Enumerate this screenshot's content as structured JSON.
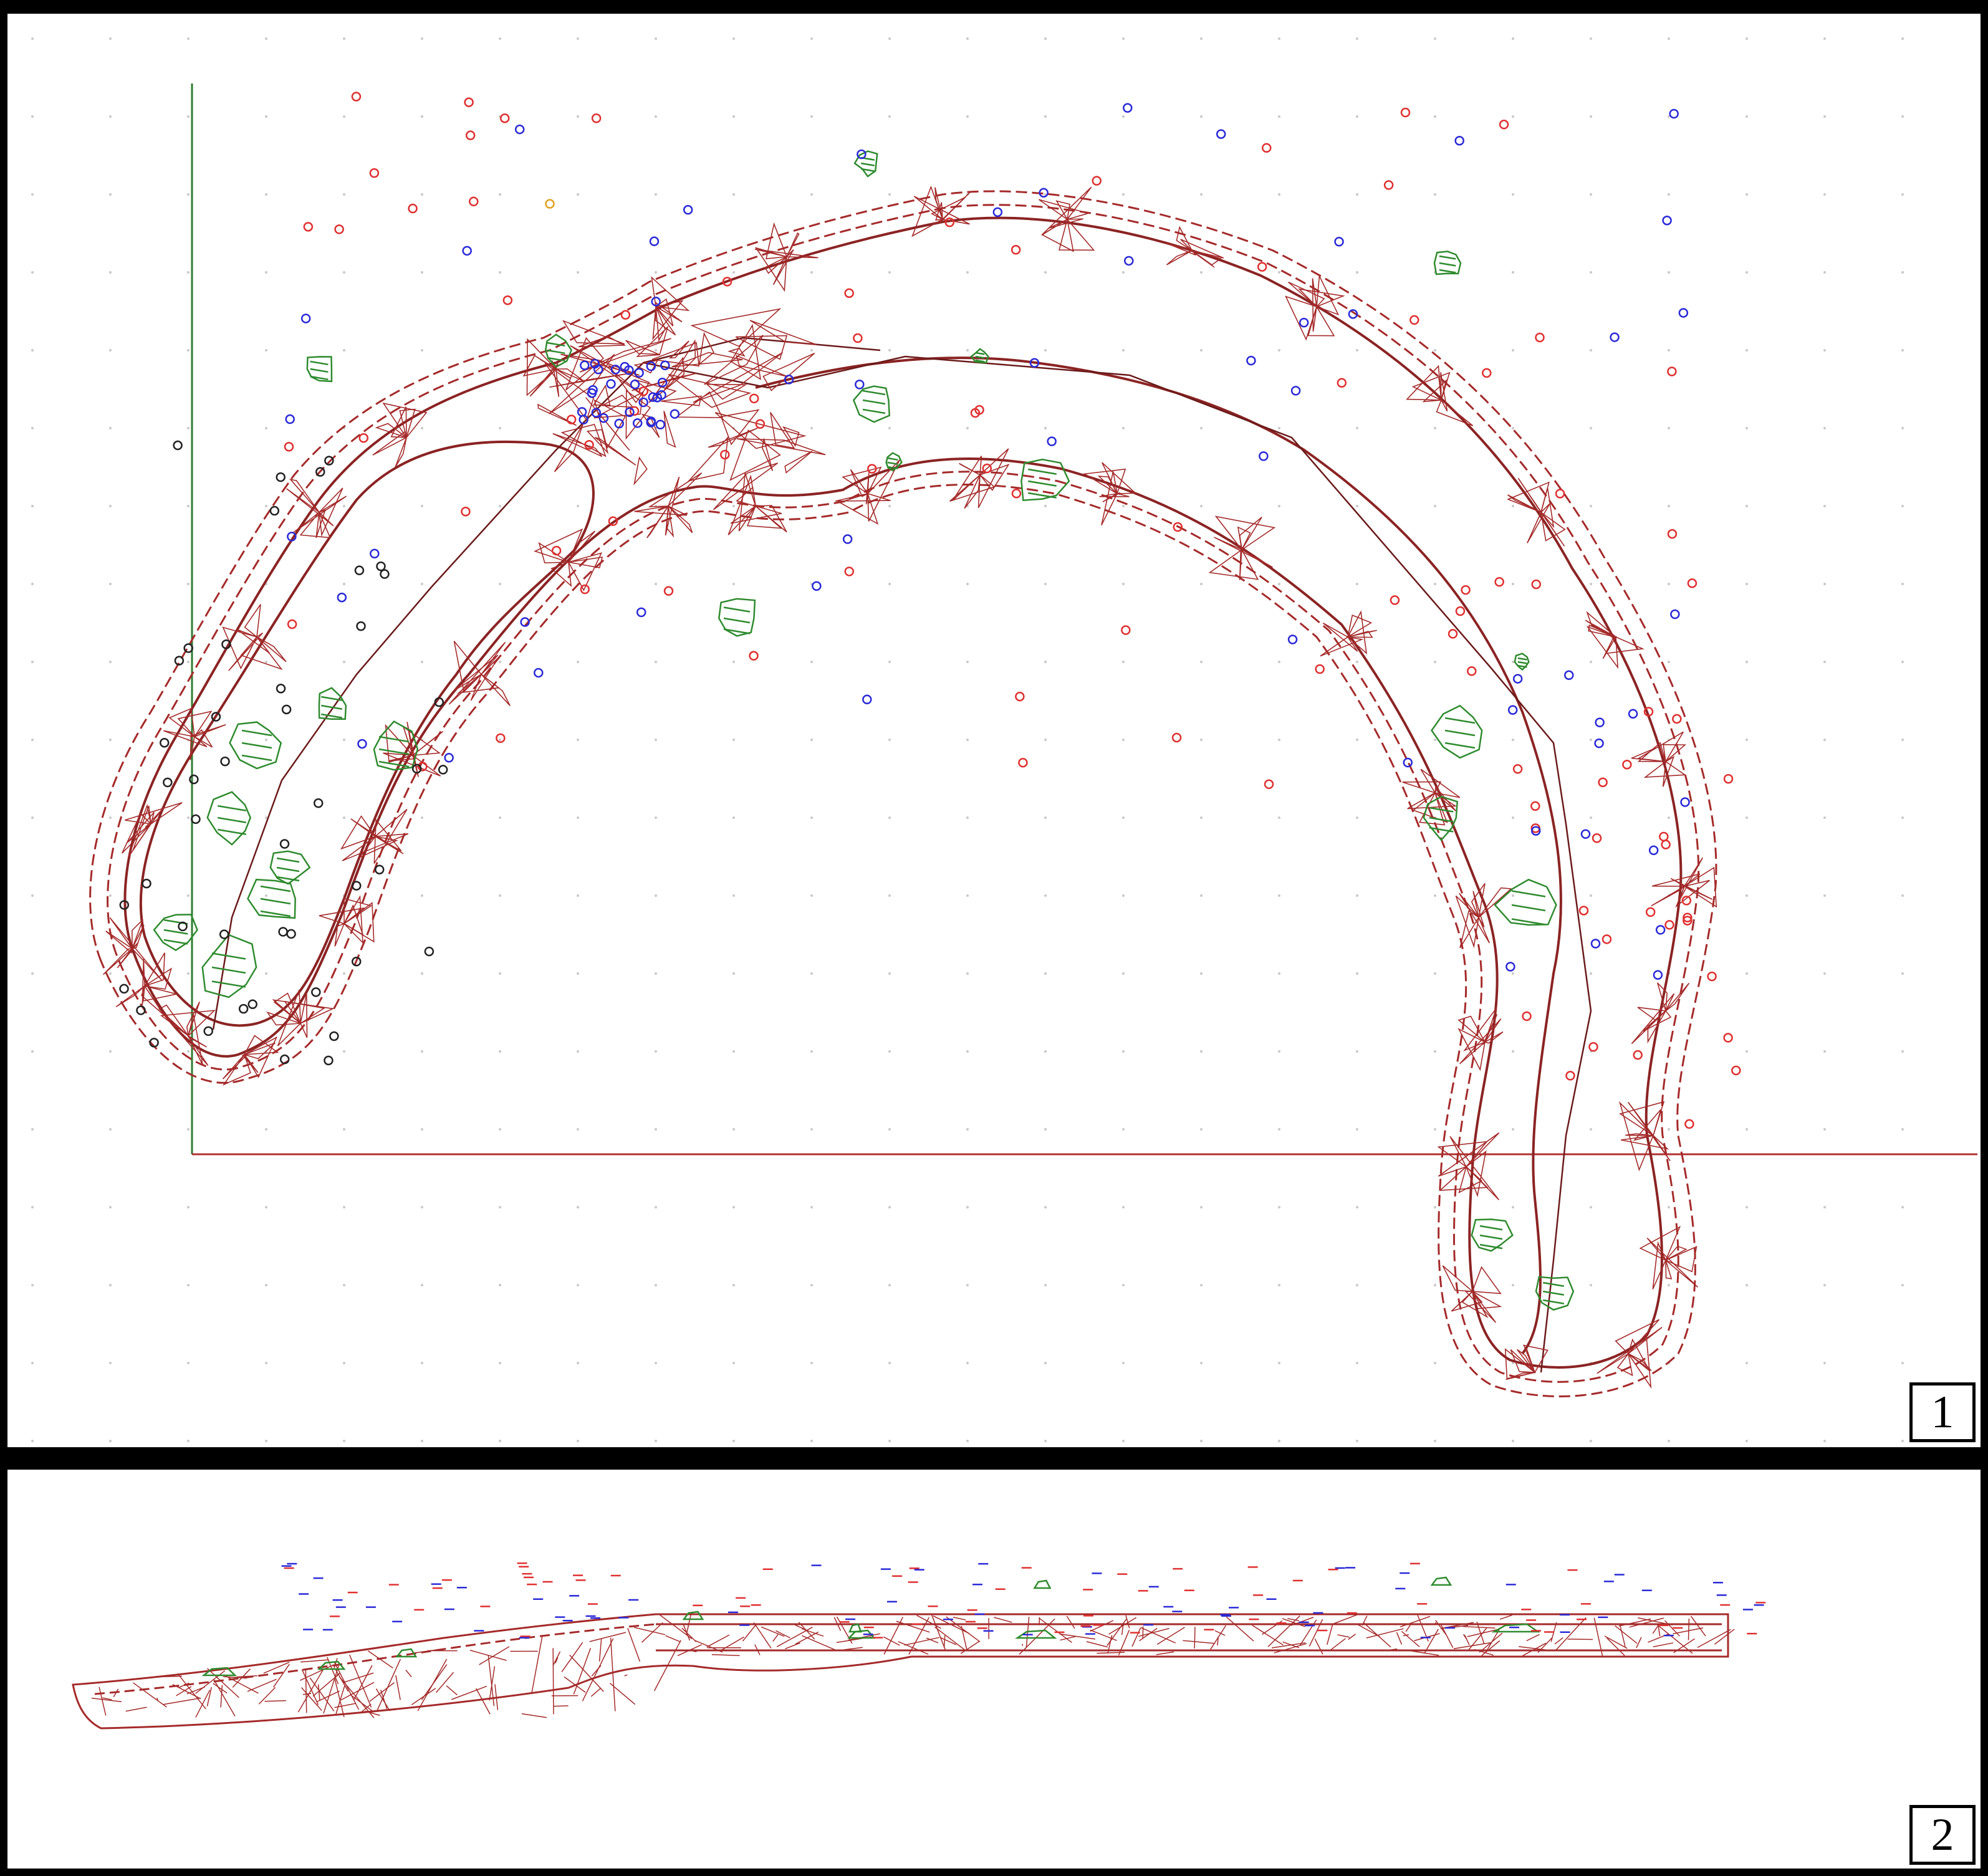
{
  "panels": [
    {
      "id": "plan-view",
      "label": "1"
    },
    {
      "id": "side-view",
      "label": "2"
    }
  ],
  "colors": {
    "mesh": "#a52a2a",
    "outline": "#8b2323",
    "rocks": "#2e8b2e",
    "marker_red": "#e03030",
    "marker_blue": "#2a2ad8",
    "marker_black": "#222222",
    "marker_orange": "#e0a020",
    "axis_vertical": "#2e7d32",
    "axis_horizontal": "#b03030",
    "grid_dots": "#c8c8c8"
  },
  "icons": {
    "mesh": "wireframe-mesh",
    "rocks": "rock-outline",
    "markers": "circle-marker"
  }
}
